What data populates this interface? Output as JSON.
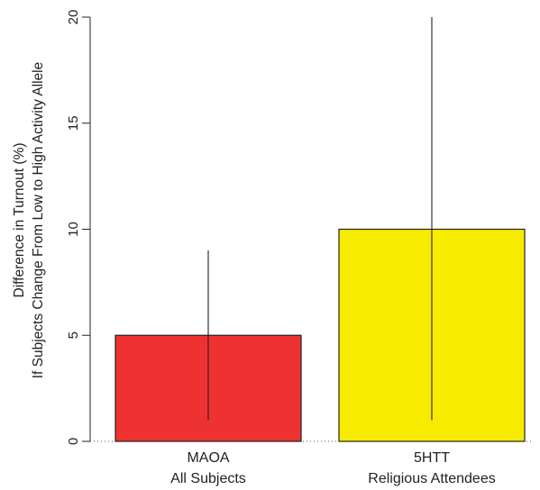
{
  "chart_data": {
    "type": "bar",
    "title": "",
    "xlabel": "",
    "ylabel": [
      "Difference in Turnout (%)",
      "If Subjects Change From Low to High Activity Allele"
    ],
    "ylim": [
      0,
      20
    ],
    "yticks": [
      0,
      5,
      10,
      15,
      20
    ],
    "grid": false,
    "baseline": "dotted",
    "categories": [
      {
        "line1": "MAOA",
        "line2": "All Subjects"
      },
      {
        "line1": "5HTT",
        "line2": "Religious Attendees"
      }
    ],
    "values": [
      5,
      10
    ],
    "error_low": [
      1,
      1
    ],
    "error_high": [
      9,
      20
    ],
    "colors": [
      "#ee3232",
      "#f7ec00"
    ]
  }
}
